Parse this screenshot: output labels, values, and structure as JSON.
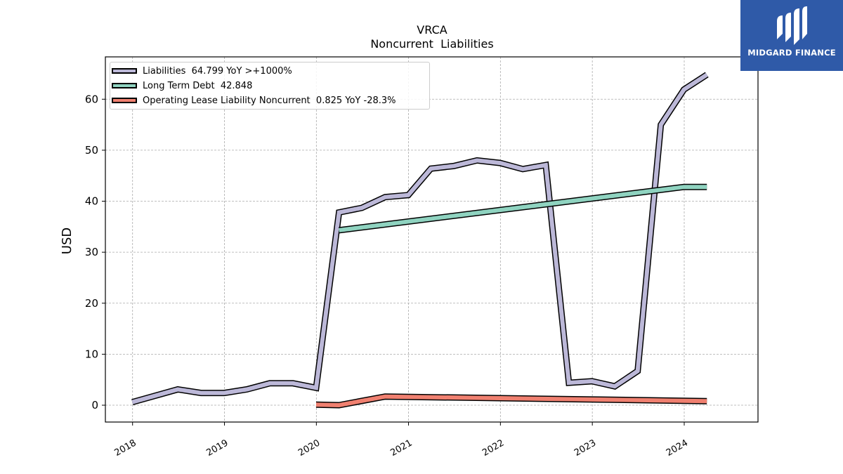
{
  "title": "VRCA",
  "subtitle": "Noncurrent  Liabilities",
  "logo": {
    "text": "MIDGARD FINANCE",
    "icon": "midgard-logo-icon"
  },
  "chart_data": {
    "type": "line",
    "ylabel": "USD",
    "xlabel": "",
    "xlim": [
      "2017-09-15",
      "2024-10-20"
    ],
    "ylim": [
      -3.3,
      68.3
    ],
    "yticks": [
      0,
      10,
      20,
      30,
      40,
      50,
      60
    ],
    "xticks": [
      "2018",
      "2019",
      "2020",
      "2021",
      "2022",
      "2023",
      "2024"
    ],
    "grid": true,
    "legend_position": "top-left",
    "series": [
      {
        "name": "Liabilities",
        "legend_label": "Liabilities  64.799 YoY >+1000%",
        "color": "#bcb8d8",
        "points": [
          [
            "2017-12-31",
            0.6
          ],
          [
            "2018-06-30",
            3.1
          ],
          [
            "2018-09-30",
            2.4
          ],
          [
            "2018-12-31",
            2.4
          ],
          [
            "2019-03-31",
            3.1
          ],
          [
            "2019-06-30",
            4.3
          ],
          [
            "2019-09-30",
            4.3
          ],
          [
            "2019-12-31",
            3.4
          ],
          [
            "2020-03-31",
            37.8
          ],
          [
            "2020-06-30",
            38.7
          ],
          [
            "2020-09-30",
            40.8
          ],
          [
            "2020-12-31",
            41.2
          ],
          [
            "2021-03-31",
            46.4
          ],
          [
            "2021-06-30",
            46.9
          ],
          [
            "2021-09-30",
            48.0
          ],
          [
            "2021-12-31",
            47.5
          ],
          [
            "2022-03-31",
            46.3
          ],
          [
            "2022-06-30",
            47.1
          ],
          [
            "2022-09-30",
            4.4
          ],
          [
            "2022-12-31",
            4.7
          ],
          [
            "2023-03-31",
            3.7
          ],
          [
            "2023-06-30",
            6.7
          ],
          [
            "2023-09-30",
            55.0
          ],
          [
            "2023-12-31",
            61.9
          ],
          [
            "2024-03-31",
            64.8
          ]
        ]
      },
      {
        "name": "Long Term Debt",
        "legend_label": "Long Term Debt  42.848",
        "color": "#8fd3c0",
        "points": [
          [
            "2020-03-31",
            34.3
          ],
          [
            "2023-12-31",
            42.8
          ],
          [
            "2024-03-31",
            42.8
          ]
        ]
      },
      {
        "name": "Operating Lease Liability Noncurrent",
        "legend_label": "Operating Lease Liability Noncurrent  0.825 YoY -28.3%",
        "color": "#f08070",
        "points": [
          [
            "2019-12-31",
            0.1
          ],
          [
            "2020-03-31",
            0.0
          ],
          [
            "2020-09-30",
            1.7
          ],
          [
            "2024-03-31",
            0.8
          ]
        ]
      }
    ]
  }
}
